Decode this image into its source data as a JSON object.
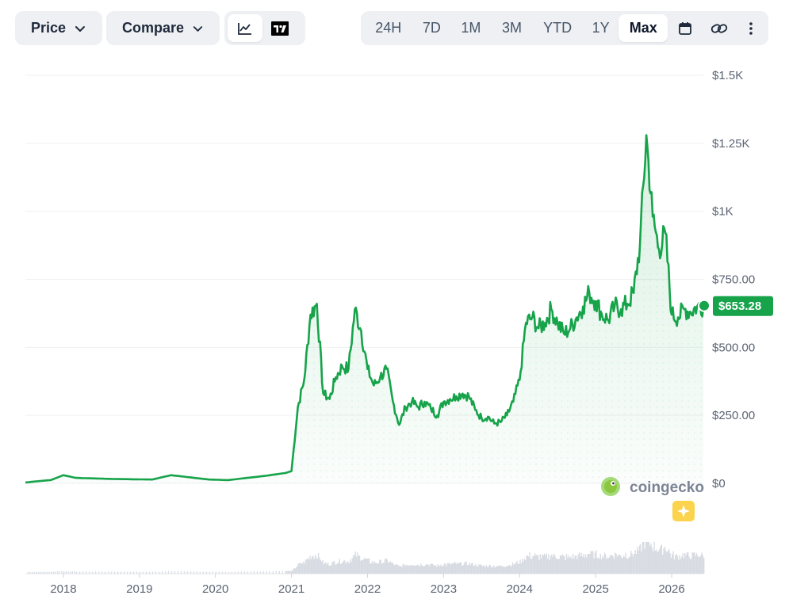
{
  "toolbar": {
    "price_label": "Price",
    "compare_label": "Compare",
    "view_icons": [
      "line-chart-icon",
      "tradingview-icon"
    ],
    "ranges": [
      "24H",
      "7D",
      "1M",
      "3M",
      "YTD",
      "1Y",
      "Max"
    ],
    "active_range": "Max",
    "extra_icons": [
      "calendar-icon",
      "link-icon",
      "more-icon"
    ]
  },
  "chart_data": {
    "type": "area",
    "x_ticks": [
      "2018",
      "2019",
      "2020",
      "2021",
      "2022",
      "2023",
      "2024",
      "2025",
      "2026"
    ],
    "y_ticks": [
      "$0",
      "$250.00",
      "$500.00",
      "$750.00",
      "$1K",
      "$1.25K",
      "$1.5K"
    ],
    "ylim": [
      0,
      1500
    ],
    "xlim": [
      "2017-07",
      "2026-06"
    ],
    "current_price_label": "$653.28",
    "current_price": 653.28,
    "series": [
      {
        "x": [
          "2017-07",
          "2017-09",
          "2017-11",
          "2018-01",
          "2018-03",
          "2018-06",
          "2018-09",
          "2018-12",
          "2019-03",
          "2019-06",
          "2019-09",
          "2019-12",
          "2020-03",
          "2020-06",
          "2020-09",
          "2020-12",
          "2021-01",
          "2021-02",
          "2021-03",
          "2021-04",
          "2021-05",
          "2021-06",
          "2021-07",
          "2021-08",
          "2021-09",
          "2021-10",
          "2021-11",
          "2021-12",
          "2022-01",
          "2022-02",
          "2022-03",
          "2022-04",
          "2022-05",
          "2022-06",
          "2022-07",
          "2022-08",
          "2022-09",
          "2022-10",
          "2022-11",
          "2022-12",
          "2023-01",
          "2023-02",
          "2023-03",
          "2023-04",
          "2023-05",
          "2023-06",
          "2023-07",
          "2023-08",
          "2023-09",
          "2023-10",
          "2023-11",
          "2023-12",
          "2024-01",
          "2024-02",
          "2024-03",
          "2024-04",
          "2024-05",
          "2024-06",
          "2024-07",
          "2024-08",
          "2024-09",
          "2024-10",
          "2024-11",
          "2024-12",
          "2025-01",
          "2025-02",
          "2025-03",
          "2025-04",
          "2025-05",
          "2025-06",
          "2025-07",
          "2025-08",
          "2025-09",
          "2025-10",
          "2025-11",
          "2025-12",
          "2026-01",
          "2026-02",
          "2026-03",
          "2026-04",
          "2026-05",
          "2026-06"
        ],
        "values": [
          3,
          8,
          12,
          30,
          20,
          18,
          16,
          15,
          14,
          30,
          22,
          14,
          12,
          20,
          28,
          38,
          45,
          280,
          380,
          620,
          660,
          330,
          310,
          390,
          430,
          420,
          640,
          560,
          420,
          360,
          390,
          420,
          300,
          215,
          280,
          300,
          280,
          300,
          275,
          250,
          300,
          310,
          320,
          330,
          320,
          270,
          240,
          245,
          220,
          225,
          250,
          300,
          380,
          590,
          610,
          570,
          590,
          640,
          590,
          550,
          570,
          610,
          650,
          700,
          670,
          620,
          600,
          650,
          640,
          660,
          700,
          880,
          1280,
          980,
          860,
          920,
          620,
          610,
          640,
          630,
          650,
          653
        ]
      }
    ],
    "volume_note": "trading volume bars",
    "accent_color": "#16a34a",
    "fill_color": "#dcf5e4"
  },
  "watermark": {
    "brand": "coingecko"
  }
}
